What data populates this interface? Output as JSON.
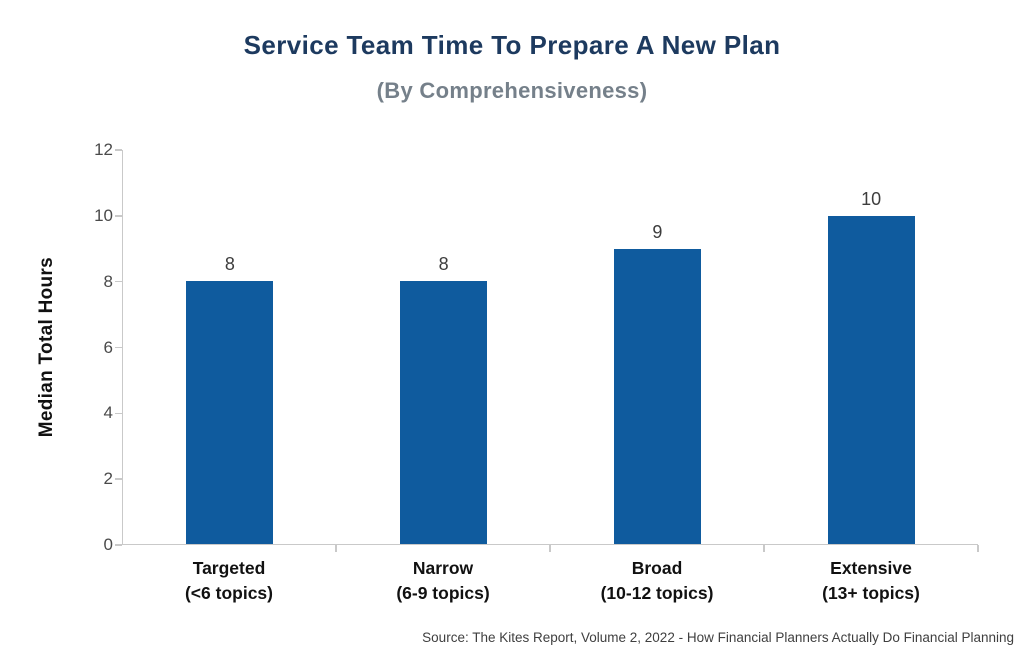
{
  "title": "Service Team Time To Prepare A New Plan",
  "subtitle": "(By Comprehensiveness)",
  "source": "Source: The Kites Report, Volume 2, 2022 - How Financial Planners Actually Do Financial Planning",
  "colors": {
    "bar": "#0f5b9e",
    "title_text": "#1d3a5f",
    "subtitle_text": "#75808a",
    "axis_line": "#c9c9c9",
    "tick_text": "#4a4a4a",
    "category_text": "#111111"
  },
  "chart_data": {
    "type": "bar",
    "title": "Service Team Time To Prepare A New Plan",
    "subtitle": "(By Comprehensiveness)",
    "xlabel": "",
    "ylabel": "Median Total Hours",
    "categories": [
      {
        "label": "Targeted",
        "sub": "(<6 topics)"
      },
      {
        "label": "Narrow",
        "sub": "(6-9 topics)"
      },
      {
        "label": "Broad",
        "sub": "(10-12 topics)"
      },
      {
        "label": "Extensive",
        "sub": "(13+ topics)"
      }
    ],
    "values": [
      8,
      8,
      9,
      10
    ],
    "value_labels": [
      "8",
      "8",
      "9",
      "10"
    ],
    "ylim": [
      0,
      12
    ],
    "yticks": [
      0,
      2,
      4,
      6,
      8,
      10,
      12
    ],
    "grid": false,
    "legend": false,
    "bar_color": "#0f5b9e"
  }
}
